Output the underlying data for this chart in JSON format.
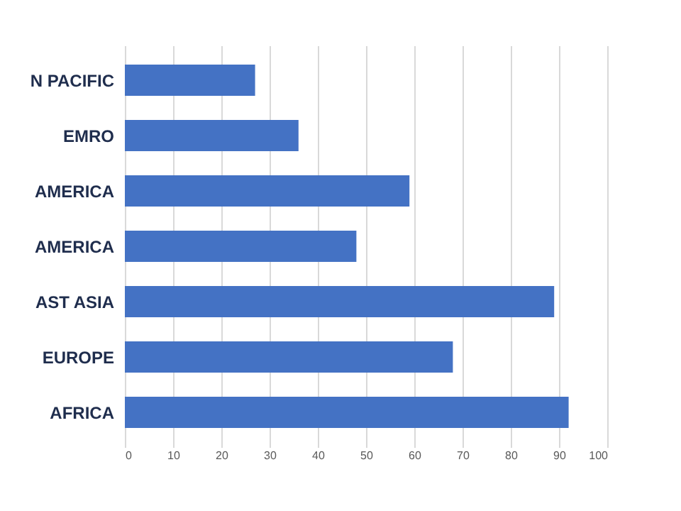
{
  "chart_data": {
    "type": "bar",
    "orientation": "horizontal",
    "categories": [
      "N PACIFIC",
      "EMRO",
      "AMERICA",
      "AMERICA",
      "AST ASIA",
      "EUROPE",
      "AFRICA"
    ],
    "values": [
      27,
      36,
      59,
      48,
      89,
      68,
      92
    ],
    "color": "#4472c4",
    "xlim": [
      0,
      100
    ],
    "xticks": [
      0,
      10,
      20,
      30,
      40,
      50,
      60,
      70,
      80,
      90,
      100
    ],
    "grid": "x"
  }
}
